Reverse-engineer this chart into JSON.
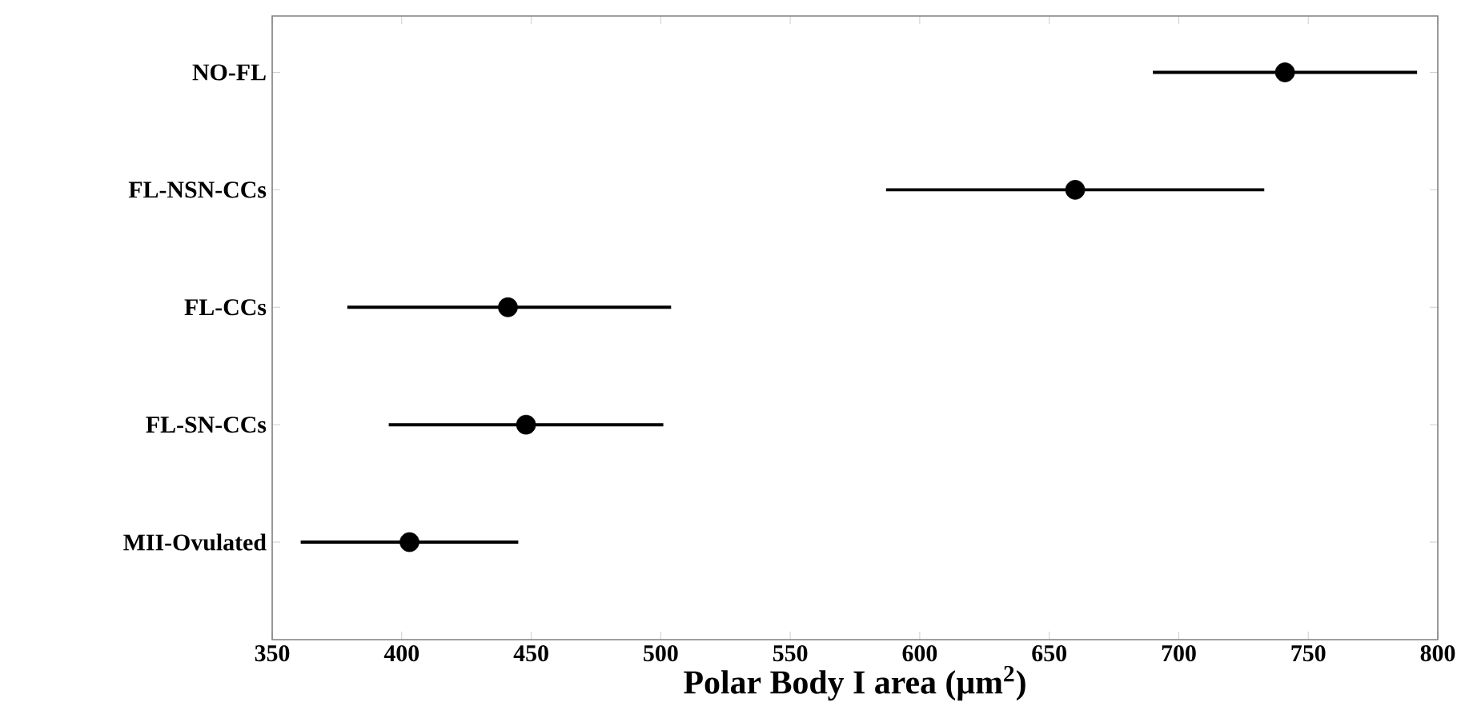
{
  "chart_data": {
    "type": "scatter",
    "orientation": "horizontal",
    "xlabel": "Polar Body I area (μm$^{2}$)",
    "categories": [
      "NO-FL",
      "FL-NSN-CCs",
      "FL-CCs",
      "FL-SN-CCs",
      "MII-Ovulated"
    ],
    "values": [
      741,
      660,
      441,
      448,
      403
    ],
    "errors": [
      [
        690,
        792
      ],
      [
        587,
        733
      ],
      [
        379,
        504
      ],
      [
        395,
        501
      ],
      [
        361,
        445
      ]
    ],
    "color": "#000000",
    "marker": "circle",
    "grid": false,
    "xlim": [
      350,
      800
    ],
    "xticks": [
      350,
      400,
      450,
      500,
      550,
      600,
      650,
      700,
      750,
      800
    ]
  }
}
